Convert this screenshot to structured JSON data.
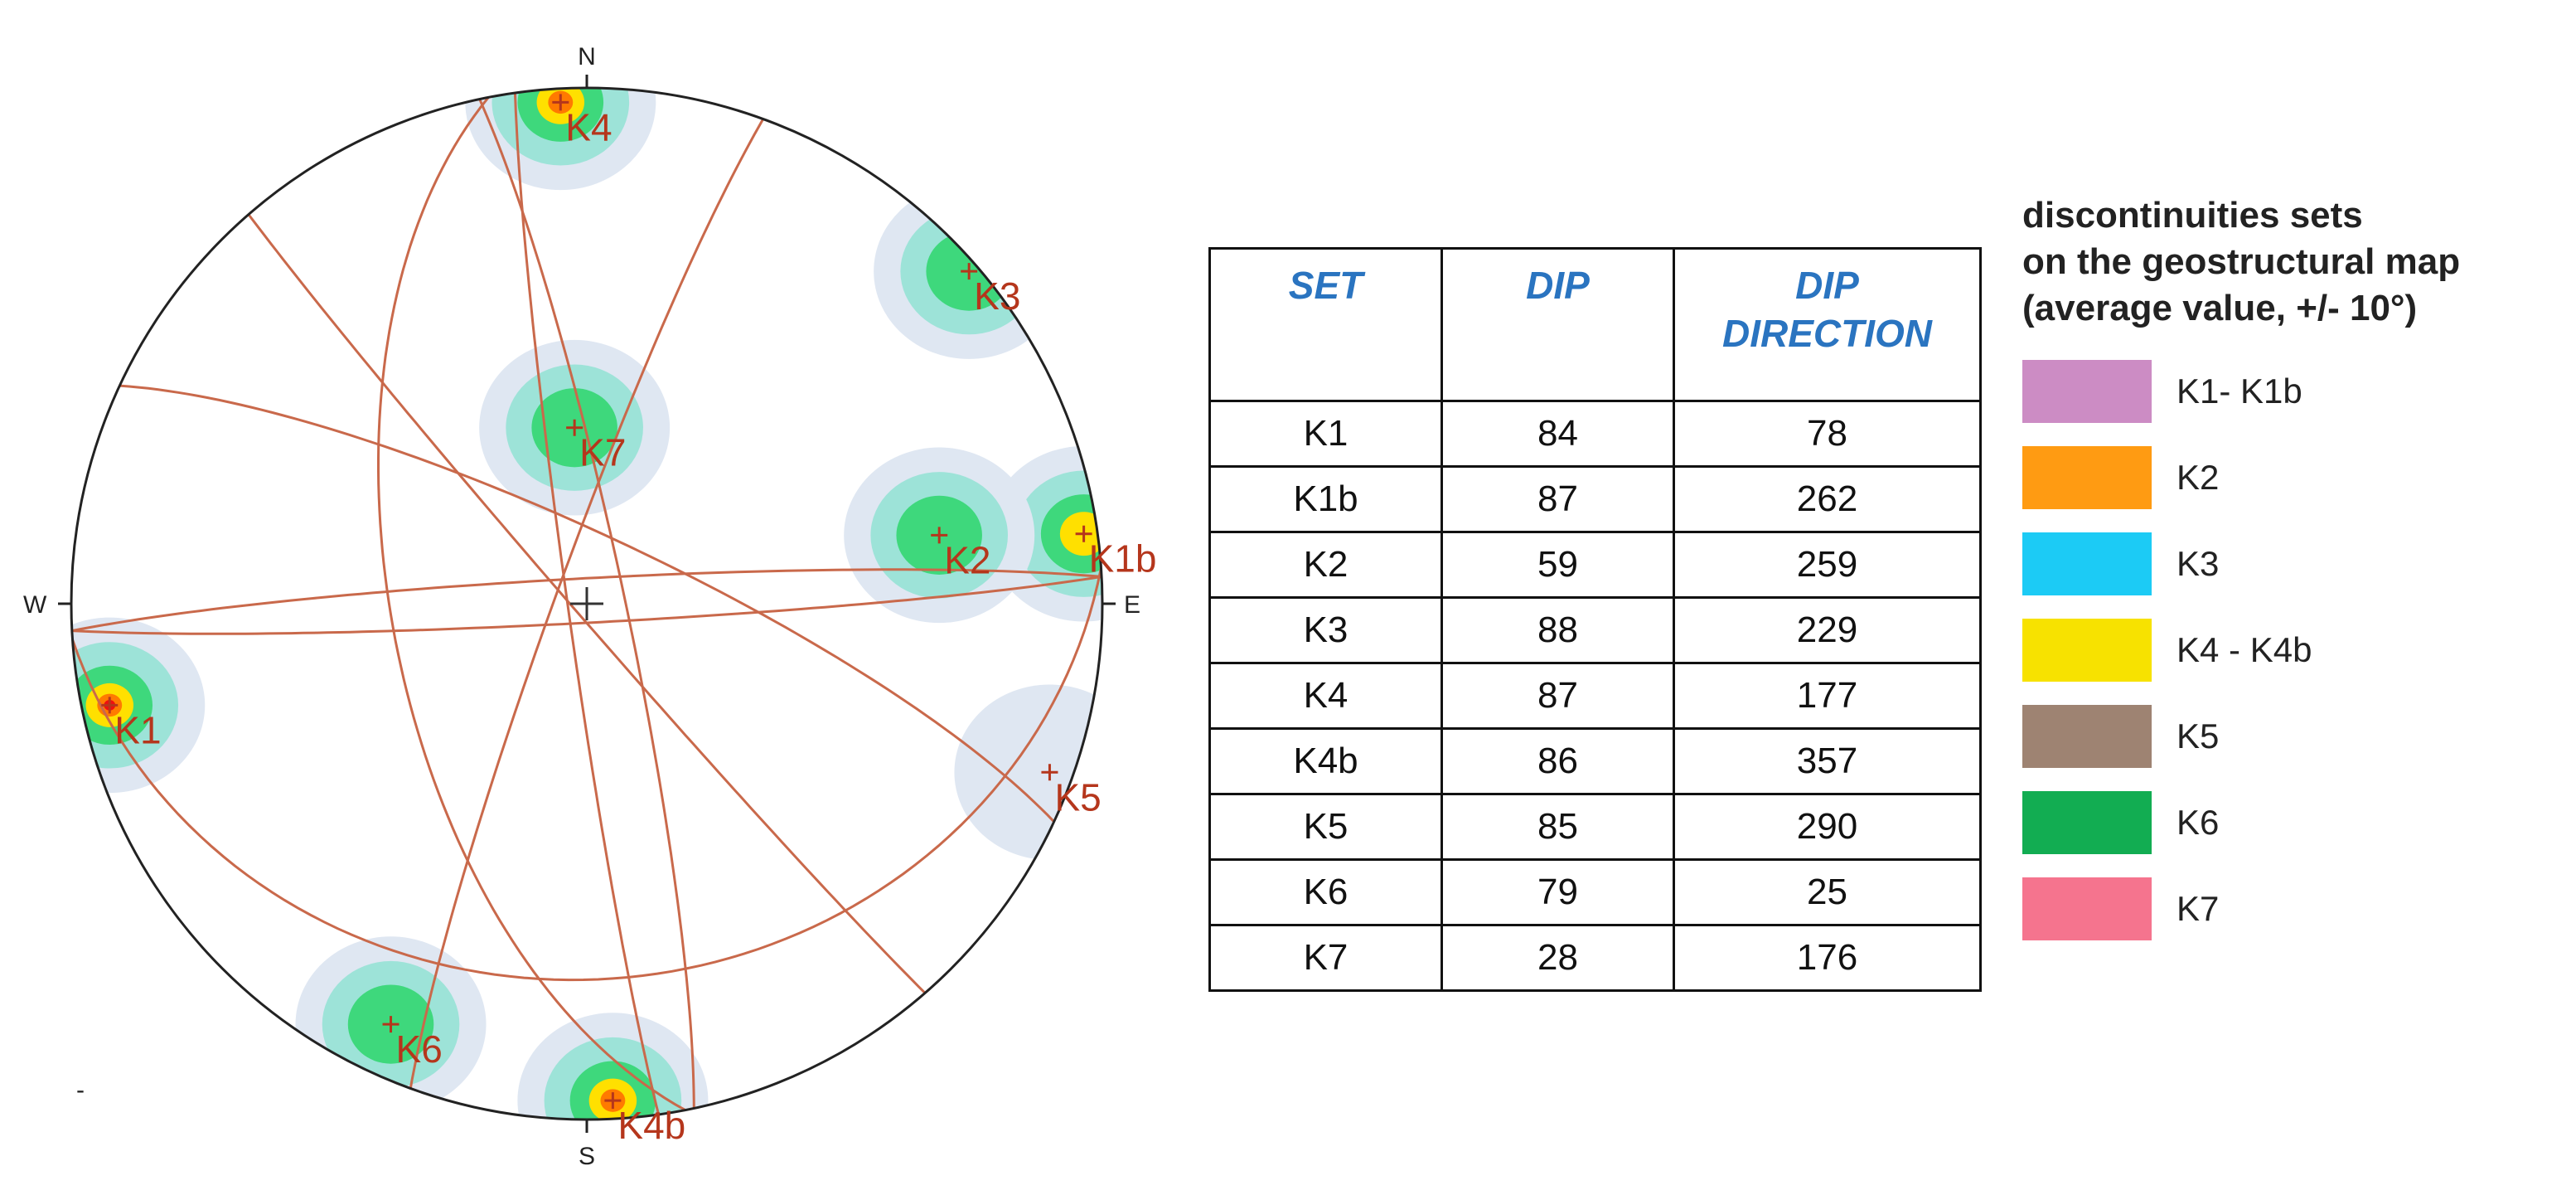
{
  "stereonet": {
    "directions": {
      "north": "N",
      "south": "S",
      "east": "E",
      "west": "W"
    },
    "stray_mark": "-",
    "poles": [
      {
        "label": "K1",
        "trend": 258,
        "plunge": 6
      },
      {
        "label": "K1b",
        "trend": 82,
        "plunge": 3
      },
      {
        "label": "K2",
        "trend": 79,
        "plunge": 31
      },
      {
        "label": "K3",
        "trend": 49,
        "plunge": 2
      },
      {
        "label": "K4",
        "trend": 357,
        "plunge": 3
      },
      {
        "label": "K4b",
        "trend": 177,
        "plunge": 4
      },
      {
        "label": "K5",
        "trend": 110,
        "plunge": 5
      },
      {
        "label": "K6",
        "trend": 205,
        "plunge": 11
      },
      {
        "label": "K7",
        "trend": 356,
        "plunge": 62
      }
    ],
    "planes": [
      {
        "set": "K1",
        "dip": 84,
        "dip_direction": 78
      },
      {
        "set": "K1b",
        "dip": 87,
        "dip_direction": 262
      },
      {
        "set": "K2",
        "dip": 59,
        "dip_direction": 259
      },
      {
        "set": "K3",
        "dip": 88,
        "dip_direction": 229
      },
      {
        "set": "K4",
        "dip": 87,
        "dip_direction": 177
      },
      {
        "set": "K4b",
        "dip": 86,
        "dip_direction": 357
      },
      {
        "set": "K5",
        "dip": 85,
        "dip_direction": 290
      },
      {
        "set": "K6",
        "dip": 79,
        "dip_direction": 25
      },
      {
        "set": "K7",
        "dip": 28,
        "dip_direction": 176
      }
    ],
    "colors": {
      "circle": "#222222",
      "great_circles": "#c9694b",
      "poles": "#b5361c",
      "density_low": "#dfe7f2",
      "density_mid": "#9de3d8",
      "density_high": "#3ed87c",
      "density_peak": "#ffe000",
      "density_max": "#ff7a00",
      "density_center": "#ee1010"
    }
  },
  "table": {
    "headers": [
      "SET",
      "DIP",
      "DIP\nDIRECTION"
    ],
    "rows": [
      [
        "K1",
        "84",
        "78"
      ],
      [
        "K1b",
        "87",
        "262"
      ],
      [
        "K2",
        "59",
        "259"
      ],
      [
        "K3",
        "88",
        "229"
      ],
      [
        "K4",
        "87",
        "177"
      ],
      [
        "K4b",
        "86",
        "357"
      ],
      [
        "K5",
        "85",
        "290"
      ],
      [
        "K6",
        "79",
        "25"
      ],
      [
        "K7",
        "28",
        "176"
      ]
    ]
  },
  "legend": {
    "title": "discontinuities sets\non the geostructural map\n(average value, +/- 10°)",
    "items": [
      {
        "label": "K1- K1b",
        "color": "#cc8cc4"
      },
      {
        "label": "K2",
        "color": "#ff9b12"
      },
      {
        "label": "K3",
        "color": "#1ccbf5"
      },
      {
        "label": "K4 - K4b",
        "color": "#f7e200"
      },
      {
        "label": "K5",
        "color": "#9e8372"
      },
      {
        "label": "K6",
        "color": "#12ad52"
      },
      {
        "label": "K7",
        "color": "#f5748e"
      }
    ]
  }
}
